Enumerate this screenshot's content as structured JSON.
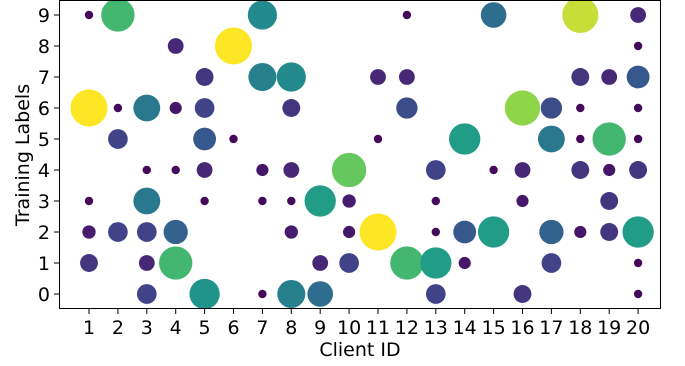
{
  "chart_data": {
    "type": "scatter",
    "xlabel": "Client ID",
    "ylabel": "Training Labels",
    "x_ticks": [
      1,
      2,
      3,
      4,
      5,
      6,
      7,
      8,
      9,
      10,
      11,
      12,
      13,
      14,
      15,
      16,
      17,
      18,
      19,
      20
    ],
    "y_ticks": [
      0,
      1,
      2,
      3,
      4,
      5,
      6,
      7,
      8,
      9
    ],
    "xlim": [
      0,
      21
    ],
    "ylim": [
      -0.6,
      9.5
    ],
    "grid": false,
    "legend": "none",
    "size_encoding": "marker area and color (viridis) scale with sample count",
    "points": [
      {
        "x": 1,
        "y": 1,
        "v": 2
      },
      {
        "x": 1,
        "y": 2,
        "v": 1
      },
      {
        "x": 1,
        "y": 3,
        "v": 0.3
      },
      {
        "x": 1,
        "y": 6,
        "v": 10
      },
      {
        "x": 1,
        "y": 9,
        "v": 0.3
      },
      {
        "x": 2,
        "y": 2,
        "v": 2.5
      },
      {
        "x": 2,
        "y": 5,
        "v": 2.5
      },
      {
        "x": 2,
        "y": 6,
        "v": 0.3
      },
      {
        "x": 2,
        "y": 9,
        "v": 8
      },
      {
        "x": 3,
        "y": 0,
        "v": 2.5
      },
      {
        "x": 3,
        "y": 1,
        "v": 1.5
      },
      {
        "x": 3,
        "y": 2,
        "v": 2.5
      },
      {
        "x": 3,
        "y": 3,
        "v": 5
      },
      {
        "x": 3,
        "y": 4,
        "v": 0.3
      },
      {
        "x": 3,
        "y": 6,
        "v": 5
      },
      {
        "x": 4,
        "y": 1,
        "v": 8
      },
      {
        "x": 4,
        "y": 2,
        "v": 4
      },
      {
        "x": 4,
        "y": 4,
        "v": 0.3
      },
      {
        "x": 4,
        "y": 6,
        "v": 0.8
      },
      {
        "x": 4,
        "y": 8,
        "v": 1.5
      },
      {
        "x": 5,
        "y": 0,
        "v": 6.5
      },
      {
        "x": 5,
        "y": 3,
        "v": 0.3
      },
      {
        "x": 5,
        "y": 4,
        "v": 1.5
      },
      {
        "x": 5,
        "y": 5,
        "v": 3.5
      },
      {
        "x": 5,
        "y": 6,
        "v": 2.5
      },
      {
        "x": 5,
        "y": 7,
        "v": 2
      },
      {
        "x": 6,
        "y": 5,
        "v": 0.3
      },
      {
        "x": 6,
        "y": 8,
        "v": 10
      },
      {
        "x": 7,
        "y": 0,
        "v": 0.3
      },
      {
        "x": 7,
        "y": 3,
        "v": 0.3
      },
      {
        "x": 7,
        "y": 4,
        "v": 0.8
      },
      {
        "x": 7,
        "y": 7,
        "v": 5.5
      },
      {
        "x": 7,
        "y": 9,
        "v": 6
      },
      {
        "x": 8,
        "y": 0,
        "v": 5.5
      },
      {
        "x": 8,
        "y": 2,
        "v": 1
      },
      {
        "x": 8,
        "y": 3,
        "v": 0.3
      },
      {
        "x": 8,
        "y": 4,
        "v": 1.5
      },
      {
        "x": 8,
        "y": 6,
        "v": 2
      },
      {
        "x": 8,
        "y": 7,
        "v": 6
      },
      {
        "x": 9,
        "y": 0,
        "v": 4.5
      },
      {
        "x": 9,
        "y": 1,
        "v": 1.5
      },
      {
        "x": 9,
        "y": 3,
        "v": 7
      },
      {
        "x": 10,
        "y": 1,
        "v": 2.5
      },
      {
        "x": 10,
        "y": 2,
        "v": 0.8
      },
      {
        "x": 10,
        "y": 3,
        "v": 1
      },
      {
        "x": 10,
        "y": 4,
        "v": 8.5
      },
      {
        "x": 11,
        "y": 2,
        "v": 10
      },
      {
        "x": 11,
        "y": 5,
        "v": 0.3
      },
      {
        "x": 11,
        "y": 7,
        "v": 1.5
      },
      {
        "x": 12,
        "y": 1,
        "v": 8
      },
      {
        "x": 12,
        "y": 6,
        "v": 3
      },
      {
        "x": 12,
        "y": 7,
        "v": 1.5
      },
      {
        "x": 12,
        "y": 9,
        "v": 0.3
      },
      {
        "x": 13,
        "y": 0,
        "v": 2.5
      },
      {
        "x": 13,
        "y": 1,
        "v": 7
      },
      {
        "x": 13,
        "y": 2,
        "v": 0.3
      },
      {
        "x": 13,
        "y": 3,
        "v": 0.3
      },
      {
        "x": 13,
        "y": 4,
        "v": 2.5
      },
      {
        "x": 14,
        "y": 1,
        "v": 0.8
      },
      {
        "x": 14,
        "y": 2,
        "v": 3.5
      },
      {
        "x": 14,
        "y": 5,
        "v": 7
      },
      {
        "x": 15,
        "y": 2,
        "v": 7
      },
      {
        "x": 15,
        "y": 4,
        "v": 0.3
      },
      {
        "x": 15,
        "y": 9,
        "v": 4.5
      },
      {
        "x": 16,
        "y": 0,
        "v": 2
      },
      {
        "x": 16,
        "y": 3,
        "v": 0.8
      },
      {
        "x": 16,
        "y": 4,
        "v": 1.5
      },
      {
        "x": 16,
        "y": 6,
        "v": 9
      },
      {
        "x": 17,
        "y": 1,
        "v": 2.5
      },
      {
        "x": 17,
        "y": 2,
        "v": 4
      },
      {
        "x": 17,
        "y": 5,
        "v": 5
      },
      {
        "x": 17,
        "y": 6,
        "v": 3
      },
      {
        "x": 18,
        "y": 2,
        "v": 0.8
      },
      {
        "x": 18,
        "y": 4,
        "v": 2
      },
      {
        "x": 18,
        "y": 5,
        "v": 0.3
      },
      {
        "x": 18,
        "y": 6,
        "v": 0.3
      },
      {
        "x": 18,
        "y": 7,
        "v": 2
      },
      {
        "x": 18,
        "y": 9,
        "v": 9.5
      },
      {
        "x": 19,
        "y": 2,
        "v": 2
      },
      {
        "x": 19,
        "y": 3,
        "v": 2
      },
      {
        "x": 19,
        "y": 4,
        "v": 0.8
      },
      {
        "x": 19,
        "y": 5,
        "v": 8
      },
      {
        "x": 19,
        "y": 7,
        "v": 1.5
      },
      {
        "x": 20,
        "y": 0,
        "v": 0.3
      },
      {
        "x": 20,
        "y": 1,
        "v": 0.3
      },
      {
        "x": 20,
        "y": 2,
        "v": 7
      },
      {
        "x": 20,
        "y": 4,
        "v": 2
      },
      {
        "x": 20,
        "y": 5,
        "v": 0.3
      },
      {
        "x": 20,
        "y": 6,
        "v": 0.3
      },
      {
        "x": 20,
        "y": 7,
        "v": 3.5
      },
      {
        "x": 20,
        "y": 8,
        "v": 0.3
      },
      {
        "x": 20,
        "y": 9,
        "v": 1.5
      }
    ]
  }
}
